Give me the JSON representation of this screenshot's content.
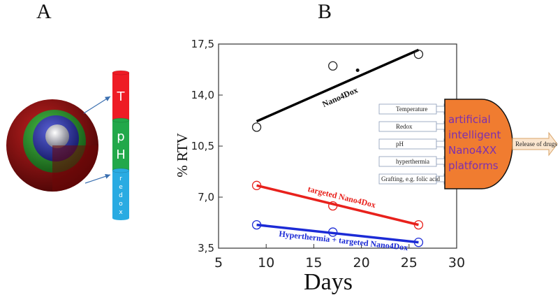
{
  "panels": {
    "a_label": "A",
    "b_label": "B"
  },
  "segments": [
    {
      "label": "T",
      "color": "#ee1c25"
    },
    {
      "label": "pH",
      "color": "#22a84a"
    },
    {
      "label": "redox",
      "color": "#29abe2"
    }
  ],
  "colors": {
    "sphere_outer": "#8b1010",
    "sphere_mid": "#2f8f2f",
    "sphere_inner": "#2a2f9e",
    "platform": "#f07c30"
  },
  "inputs": [
    "Temperature",
    "Redox",
    "pH",
    "hyperthermia",
    "Grafting, e.g. folic acid"
  ],
  "platform": {
    "lines": [
      "artificial",
      "intelligent",
      "Nano4XX",
      "platforms"
    ]
  },
  "release_label": "Release of drugs",
  "chart_data": {
    "type": "scatter",
    "xlabel": "Days",
    "ylabel": "% RTV",
    "xlim": [
      5,
      30
    ],
    "ylim": [
      3.5,
      17.5
    ],
    "xticks": [
      "5",
      "10",
      "15",
      "20",
      "25",
      "30"
    ],
    "yticks": [
      "3,5",
      "7,0",
      "10,5",
      "14,0",
      "17,5"
    ],
    "series": [
      {
        "name": "Nano4Dox",
        "color": "#000000",
        "points": [
          [
            9,
            11.8
          ],
          [
            17,
            16.0
          ],
          [
            26,
            16.8
          ]
        ],
        "fit": [
          [
            9,
            12.2
          ],
          [
            26,
            17.1
          ]
        ]
      },
      {
        "name": "targeted Nano4Dox",
        "color": "#e8211c",
        "points": [
          [
            9,
            7.8
          ],
          [
            17,
            6.4
          ],
          [
            26,
            5.1
          ]
        ],
        "fit": [
          [
            9,
            7.8
          ],
          [
            26,
            5.1
          ]
        ]
      },
      {
        "name": "Hyperthermia + targeted Nano4Dox",
        "color": "#1c2bd6",
        "points": [
          [
            9,
            5.1
          ],
          [
            17,
            4.6
          ],
          [
            26,
            3.9
          ]
        ],
        "fit": [
          [
            9,
            5.1
          ],
          [
            26,
            3.9
          ]
        ]
      }
    ]
  }
}
